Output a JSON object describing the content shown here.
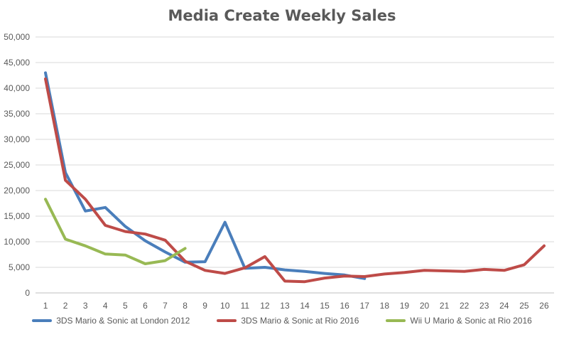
{
  "chart_data": {
    "type": "line",
    "title": "Media Create Weekly Sales",
    "xlabel": "",
    "ylabel": "",
    "x": [
      1,
      2,
      3,
      4,
      5,
      6,
      7,
      8,
      9,
      10,
      11,
      12,
      13,
      14,
      15,
      16,
      17,
      18,
      19,
      20,
      21,
      22,
      23,
      24,
      25,
      26
    ],
    "ylim": [
      0,
      50000
    ],
    "yticks": [
      "0",
      "5,000",
      "10,000",
      "15,000",
      "20,000",
      "25,000",
      "30,000",
      "35,000",
      "40,000",
      "45,000",
      "50,000"
    ],
    "grid": true,
    "legend": "bottom",
    "series": [
      {
        "name": "3DS Mario & Sonic at London 2012",
        "color": "#4A7EBB",
        "values": [
          43000,
          23500,
          16000,
          16700,
          13000,
          10200,
          8000,
          6000,
          6100,
          13800,
          4800,
          5000,
          4500,
          4200,
          3800,
          3500,
          2800,
          null,
          null,
          null,
          null,
          null,
          null,
          null,
          null,
          null
        ]
      },
      {
        "name": "3DS Mario & Sonic at Rio 2016",
        "color": "#BE4B48",
        "values": [
          41800,
          22000,
          18300,
          13200,
          12000,
          11500,
          10300,
          6200,
          4400,
          3800,
          4900,
          7100,
          2300,
          2200,
          2900,
          3300,
          3200,
          3700,
          4000,
          4400,
          4300,
          4200,
          4600,
          4400,
          5500,
          9200
        ]
      },
      {
        "name": "Wii U Mario & Sonic at Rio 2016",
        "color": "#98B954",
        "values": [
          18300,
          10500,
          9200,
          7600,
          7400,
          5700,
          6300,
          8700,
          null,
          null,
          null,
          null,
          null,
          null,
          null,
          null,
          null,
          null,
          null,
          null,
          null,
          null,
          null,
          null,
          null,
          null
        ]
      }
    ]
  }
}
